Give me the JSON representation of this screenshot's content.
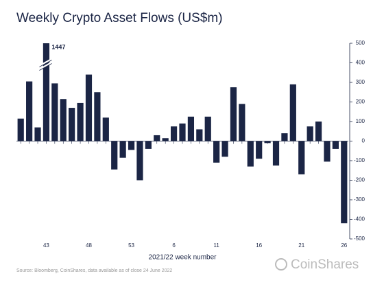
{
  "chart_data": {
    "type": "bar",
    "title": "Weekly Crypto Asset Flows (US$m)",
    "x_label": "2021/22 week number",
    "source": "Source: Bloomberg, CoinShares, data available as of close 24 June 2022",
    "brand": "CoinShares",
    "categories": [
      null,
      null,
      null,
      "43",
      null,
      null,
      null,
      null,
      "48",
      null,
      null,
      null,
      null,
      "53",
      null,
      null,
      null,
      null,
      "6",
      null,
      null,
      null,
      null,
      "11",
      null,
      null,
      null,
      null,
      "16",
      null,
      null,
      null,
      null,
      "21",
      null,
      null,
      null,
      null,
      "26"
    ],
    "values": [
      115,
      305,
      70,
      1447,
      295,
      215,
      170,
      195,
      340,
      250,
      120,
      -145,
      -85,
      -45,
      -200,
      -40,
      30,
      15,
      75,
      90,
      125,
      60,
      125,
      -110,
      -80,
      275,
      190,
      -130,
      -90,
      -10,
      -125,
      40,
      290,
      -170,
      75,
      100,
      -105,
      -40,
      -420
    ],
    "color": "#1b2545",
    "ylim": [
      -500,
      500
    ],
    "yticks": [
      -500,
      -400,
      -300,
      -200,
      -100,
      0,
      100,
      200,
      300,
      400,
      500
    ],
    "y_axis_side": "right"
  }
}
